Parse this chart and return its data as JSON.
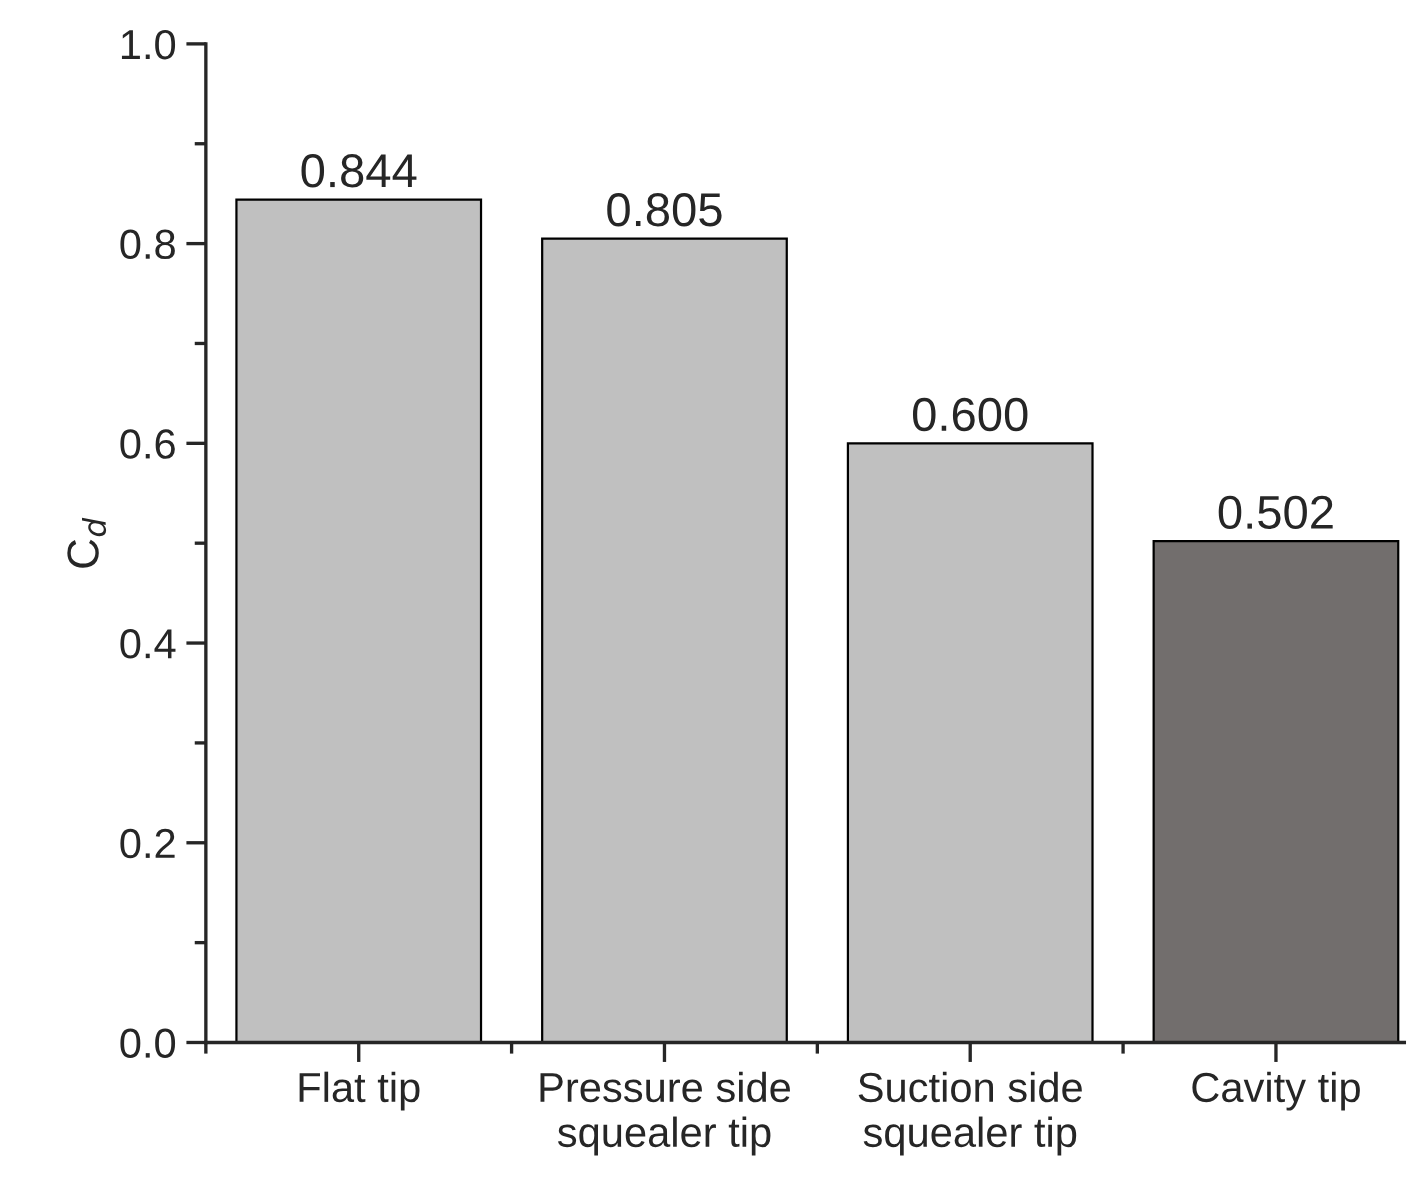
{
  "chart_data": {
    "type": "bar",
    "categories": [
      "Flat tip",
      "Pressure side\nsquealer tip",
      "Suction side\nsquealer tip",
      "Cavity tip"
    ],
    "values": [
      0.844,
      0.805,
      0.6,
      0.502
    ],
    "colors": [
      "#c0c0c0",
      "#c0c0c0",
      "#c0c0c0",
      "#726e6d"
    ],
    "ylabel": "C$_{d}$",
    "ylim": [
      0,
      1.0
    ],
    "yticks": [
      {
        "value": 0,
        "label": "0.0"
      },
      0.2,
      0.4,
      0.6,
      0.8,
      {
        "value": 1.0,
        "label": "1.0"
      }
    ],
    "data_labels": true,
    "value_labels": [
      "0.844",
      "0.805",
      "0.600",
      "0.502"
    ],
    "grid": false,
    "legend": false
  }
}
